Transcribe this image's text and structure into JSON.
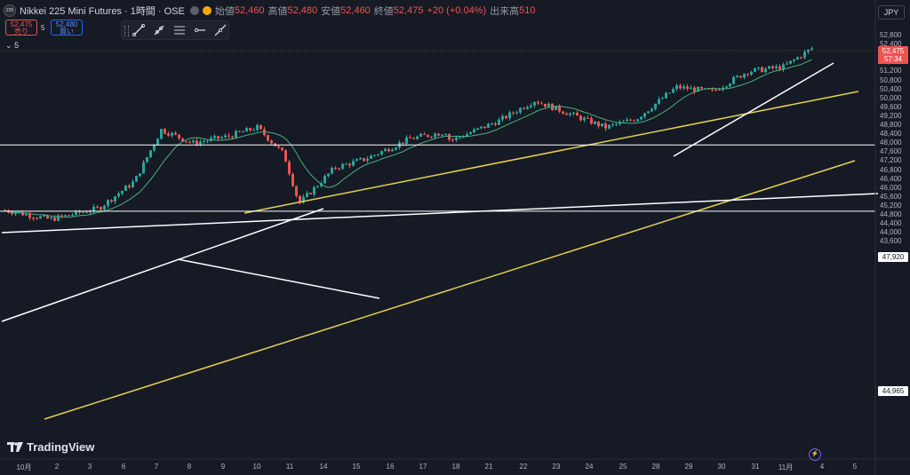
{
  "header": {
    "symbol_logo": "225",
    "title": "Nikkei 225 Mini Futures · 1時間 · OSE",
    "open_label": "始値",
    "open_value": "52,460",
    "high_label": "高値",
    "high_value": "52,480",
    "low_label": "安値",
    "low_value": "52,460",
    "close_label": "終値",
    "close_value": "52,475",
    "change": "+20 (+0.04%)",
    "volume_label": "出来高",
    "volume_value": "510"
  },
  "trade": {
    "sell_price": "52,475",
    "sell_label": "売り",
    "spread": "5",
    "buy_price": "52,480",
    "buy_label": "買い"
  },
  "indicators_count": "5",
  "currency": "JPY",
  "price_axis": {
    "labels": [
      "52,800",
      "52,000",
      "51,200",
      "50,400",
      "49,600",
      "48,800",
      "48,000",
      "47,200",
      "46,400",
      "45,600",
      "44,800",
      "44,000"
    ],
    "labels_minor": [
      "52,400",
      "51,600",
      "50,800",
      "50,000",
      "49,200",
      "48,400",
      "47,600",
      "46,800",
      "46,000",
      "45,200",
      "44,400",
      "43,600"
    ],
    "last_price": "52,475",
    "countdown": "57:34",
    "hline_1": "47,920",
    "hline_2": "44,965"
  },
  "time_axis": [
    "10月",
    "2",
    "3",
    "6",
    "7",
    "8",
    "9",
    "10",
    "11",
    "14",
    "15",
    "16",
    "17",
    "18",
    "21",
    "22",
    "23",
    "24",
    "25",
    "28",
    "29",
    "30",
    "31",
    "11月",
    "4",
    "5"
  ],
  "brand": "TradingView",
  "colors": {
    "bull": "#26a69a",
    "bear": "#ef5350",
    "yellow_line": "#e5d14f",
    "white_line": "#ffffff",
    "ma": "#4caf7d",
    "bg": "#161a25"
  },
  "chart_data": {
    "type": "candlestick",
    "title": "Nikkei 225 Mini Futures · 1時間 · OSE",
    "currency": "JPY",
    "ylim": [
      43600,
      53000
    ],
    "close_path": [
      {
        "x": "10月",
        "y": 45000
      },
      {
        "x": "2",
        "y": 44600
      },
      {
        "x": "3",
        "y": 45100
      },
      {
        "x": "6",
        "y": 46300
      },
      {
        "x": "7",
        "y": 48600
      },
      {
        "x": "8",
        "y": 48000
      },
      {
        "x": "9",
        "y": 48300
      },
      {
        "x": "10",
        "y": 48700
      },
      {
        "x": "11",
        "y": 47500
      },
      {
        "x": "11",
        "y": 45300
      },
      {
        "x": "14",
        "y": 46900
      },
      {
        "x": "15",
        "y": 47300
      },
      {
        "x": "16",
        "y": 48200
      },
      {
        "x": "17",
        "y": 48500
      },
      {
        "x": "18",
        "y": 48100
      },
      {
        "x": "18",
        "y": 49000
      },
      {
        "x": "21",
        "y": 49900
      },
      {
        "x": "22",
        "y": 49300
      },
      {
        "x": "23",
        "y": 48700
      },
      {
        "x": "24",
        "y": 49100
      },
      {
        "x": "25",
        "y": 50500
      },
      {
        "x": "28",
        "y": 50300
      },
      {
        "x": "29",
        "y": 51200
      },
      {
        "x": "30",
        "y": 51400
      },
      {
        "x": "31",
        "y": 52300
      },
      {
        "x": "11月",
        "y": 52475
      }
    ],
    "horizontal_lines": [
      47920,
      44965
    ]
  }
}
